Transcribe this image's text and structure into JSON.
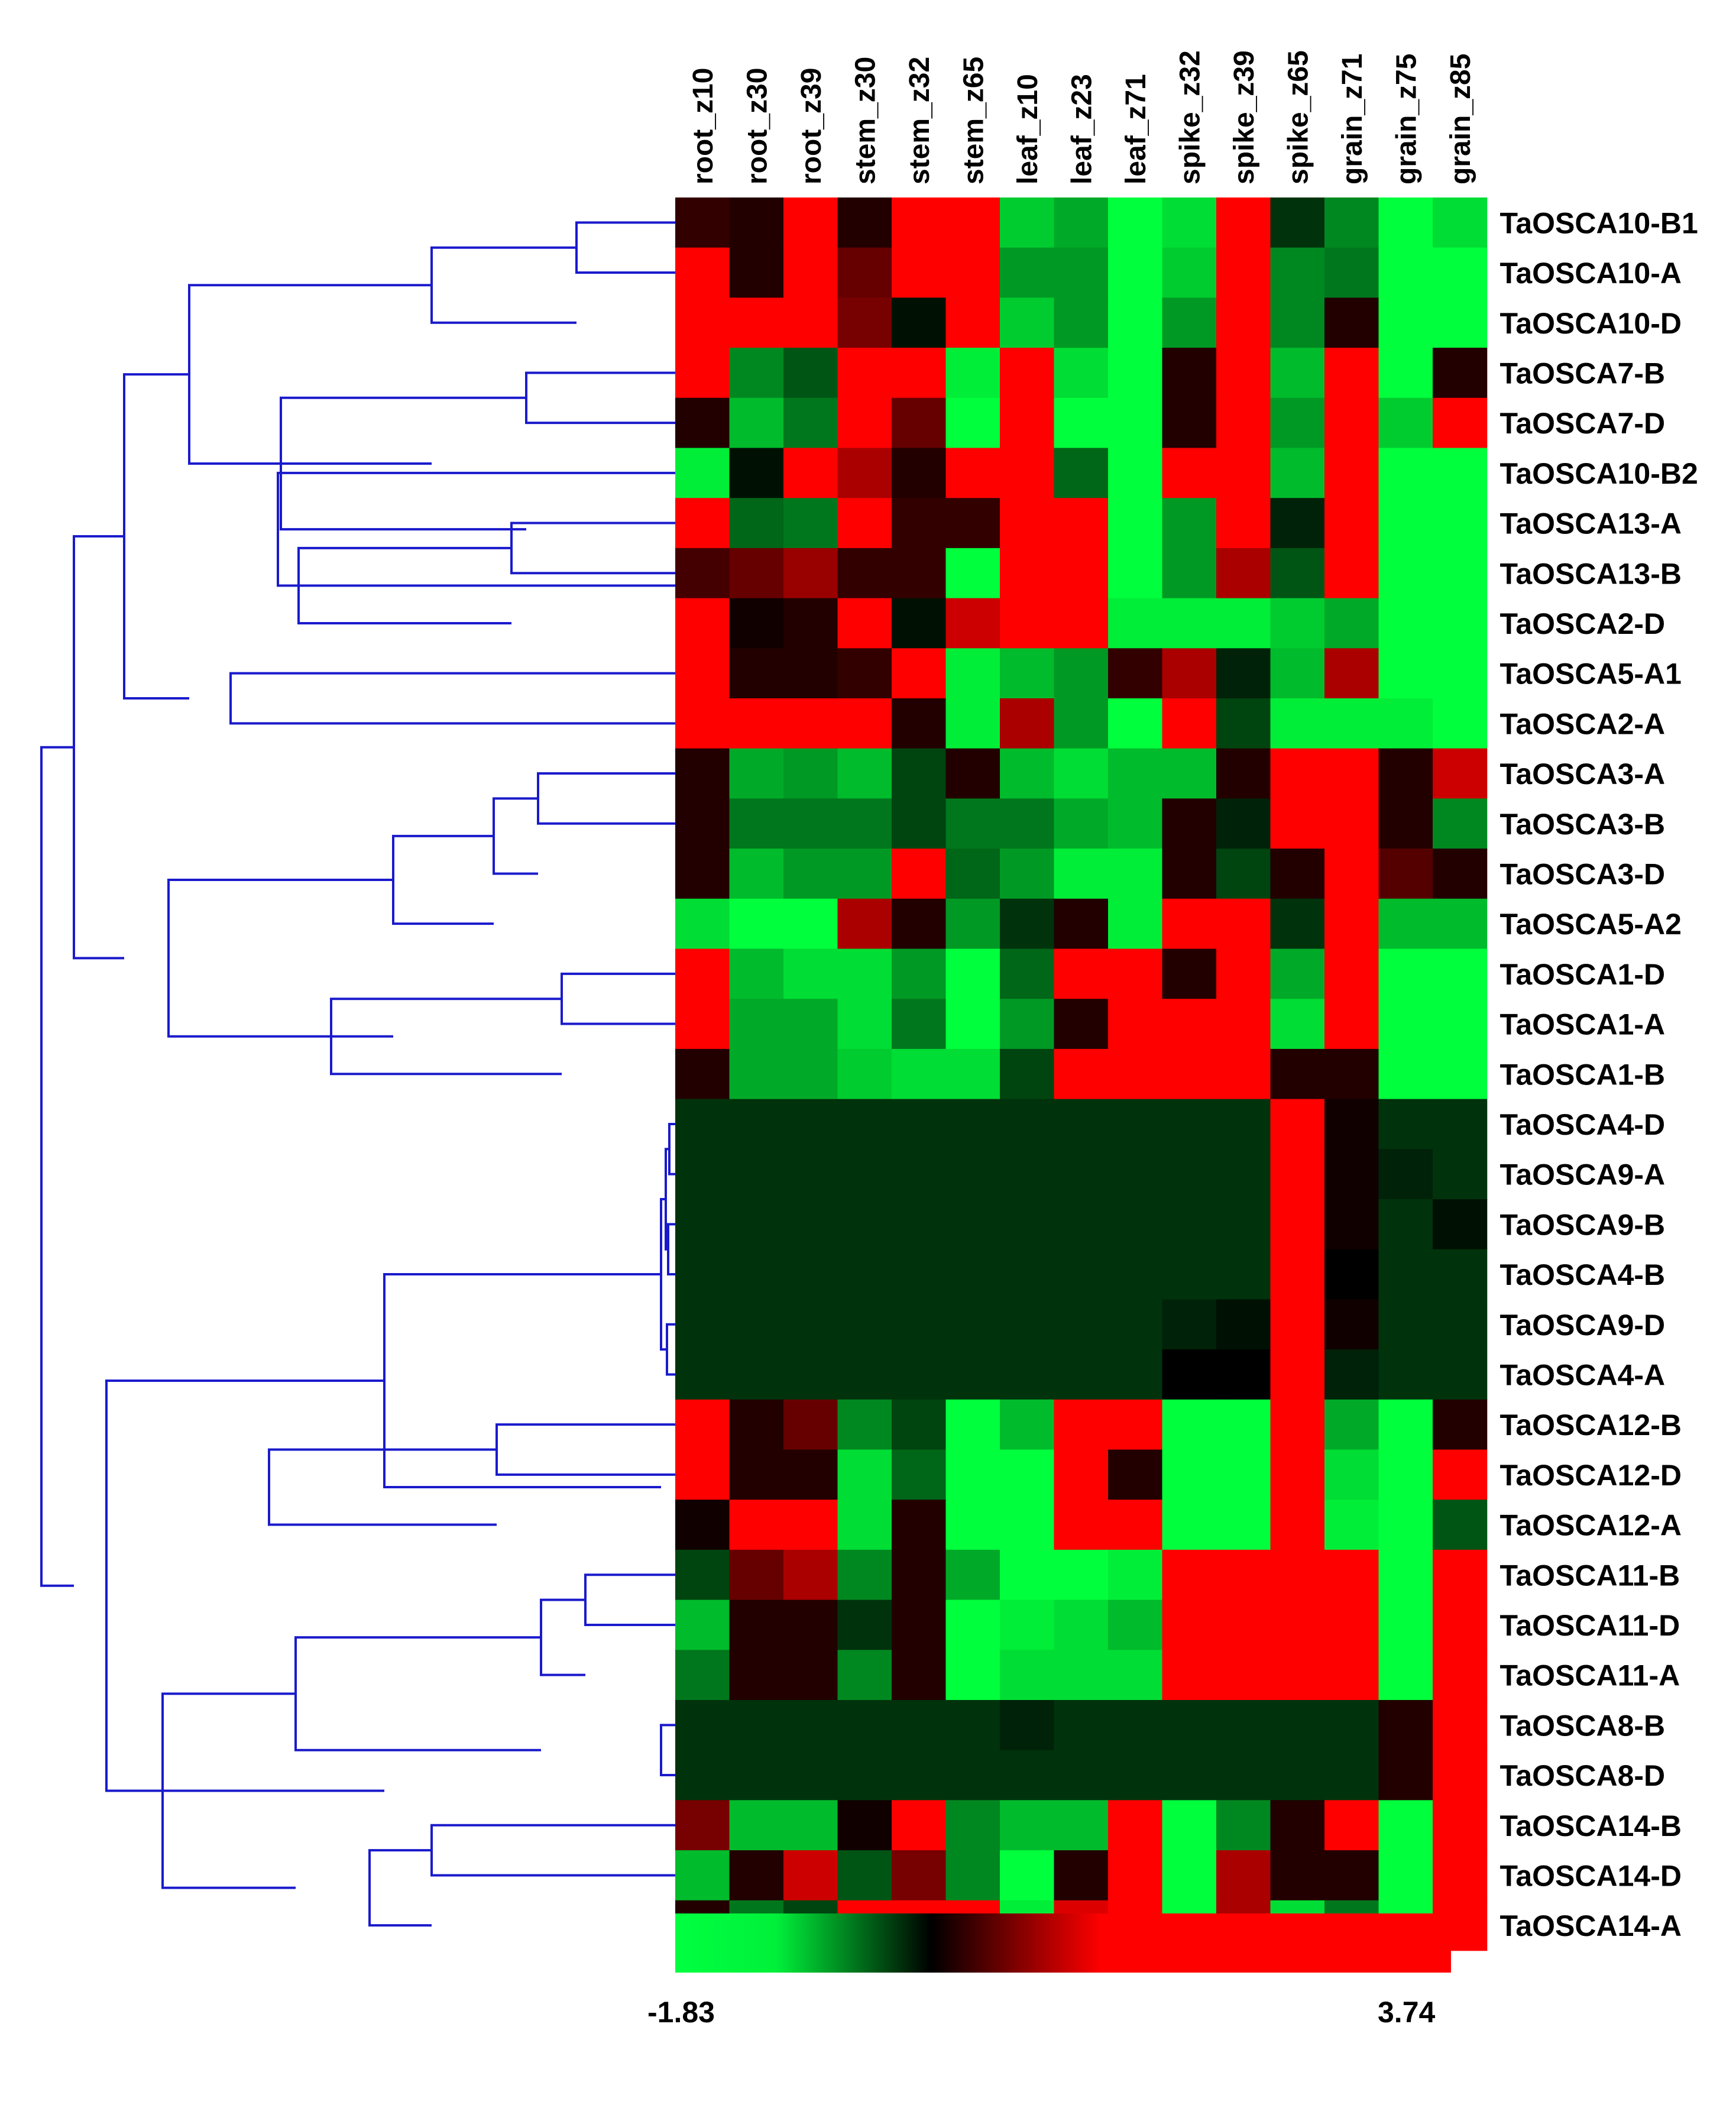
{
  "chart_data": {
    "type": "heatmap",
    "columns": [
      "root_z10",
      "root_z30",
      "root_z39",
      "stem_z30",
      "stem_z32",
      "stem_z65",
      "leaf_z10",
      "leaf_z23",
      "leaf_z71",
      "spike_z32",
      "spike_z39",
      "spike_z65",
      "grain_z71",
      "grain_z75",
      "grain_z85"
    ],
    "rows": [
      "TaOSCA10-B1",
      "TaOSCA10-A",
      "TaOSCA10-D",
      "TaOSCA7-B",
      "TaOSCA7-D",
      "TaOSCA10-B2",
      "TaOSCA13-A",
      "TaOSCA13-B",
      "TaOSCA2-D",
      "TaOSCA5-A1",
      "TaOSCA2-A",
      "TaOSCA3-A",
      "TaOSCA3-B",
      "TaOSCA3-D",
      "TaOSCA5-A2",
      "TaOSCA1-D",
      "TaOSCA1-A",
      "TaOSCA1-B",
      "TaOSCA4-D",
      "TaOSCA9-A",
      "TaOSCA9-B",
      "TaOSCA4-B",
      "TaOSCA9-D",
      "TaOSCA4-A",
      "TaOSCA12-B",
      "TaOSCA12-D",
      "TaOSCA12-A",
      "TaOSCA11-B",
      "TaOSCA11-D",
      "TaOSCA11-A",
      "TaOSCA8-B",
      "TaOSCA8-D",
      "TaOSCA14-B",
      "TaOSCA14-D",
      "TaOSCA14-A"
    ],
    "values": [
      [
        0.3,
        0.2,
        2.6,
        0.2,
        1.5,
        3.6,
        -1.2,
        -1.0,
        -1.6,
        -1.3,
        3.6,
        -0.3,
        -0.8,
        -1.7,
        -1.3
      ],
      [
        2.2,
        0.2,
        3.6,
        0.6,
        1.8,
        3.6,
        -0.9,
        -0.9,
        -1.7,
        -1.2,
        3.6,
        -0.8,
        -0.7,
        -1.7,
        -1.6
      ],
      [
        2.2,
        3.6,
        2.6,
        0.7,
        -0.1,
        3.6,
        -1.2,
        -0.9,
        -1.7,
        -0.9,
        3.6,
        -0.8,
        0.2,
        -1.7,
        -1.5
      ],
      [
        1.8,
        -0.8,
        -0.5,
        3.6,
        1.8,
        -1.4,
        3.6,
        -1.3,
        -1.7,
        0.2,
        3.6,
        -1.1,
        2.0,
        -1.7,
        0.2
      ],
      [
        0.2,
        -1.1,
        -0.7,
        3.6,
        0.6,
        -1.6,
        2.3,
        -1.5,
        -1.7,
        0.2,
        3.6,
        -0.9,
        2.0,
        -1.2,
        3.5
      ],
      [
        -1.4,
        -0.1,
        2.2,
        1.0,
        0.2,
        2.4,
        3.6,
        -0.6,
        -1.7,
        2.0,
        3.6,
        -1.1,
        1.6,
        -1.7,
        -1.7
      ],
      [
        1.5,
        -0.6,
        -0.7,
        2.6,
        0.3,
        0.3,
        3.6,
        3.6,
        -1.7,
        -0.9,
        2.5,
        -0.2,
        3.6,
        -1.7,
        -1.7
      ],
      [
        0.4,
        0.6,
        0.9,
        0.3,
        0.3,
        -1.5,
        3.6,
        3.6,
        -1.7,
        -0.9,
        1.0,
        -0.5,
        3.6,
        -1.7,
        -1.7
      ],
      [
        2.2,
        0.1,
        0.2,
        3.6,
        -0.1,
        1.2,
        3.6,
        3.6,
        -1.4,
        -1.4,
        -1.4,
        -1.2,
        -1.0,
        -1.7,
        -1.7
      ],
      [
        3.6,
        0.2,
        0.2,
        0.3,
        3.6,
        -1.4,
        -1.1,
        -0.9,
        0.3,
        1.0,
        -0.2,
        -1.1,
        1.0,
        -1.7,
        -1.7
      ],
      [
        3.6,
        2.0,
        2.0,
        3.6,
        0.2,
        -1.4,
        1.0,
        -0.9,
        -1.6,
        2.4,
        -0.4,
        -1.4,
        -1.4,
        -1.4,
        -1.5
      ],
      [
        0.2,
        -1.0,
        -0.9,
        -1.1,
        -0.4,
        0.2,
        -1.1,
        -1.3,
        -1.1,
        -1.1,
        0.2,
        3.0,
        3.6,
        0.2,
        1.2
      ],
      [
        0.2,
        -0.7,
        -0.7,
        -0.7,
        -0.4,
        -0.7,
        -0.7,
        -1.0,
        -1.1,
        0.2,
        -0.2,
        3.6,
        3.6,
        0.2,
        -0.8
      ],
      [
        0.2,
        -1.1,
        -0.9,
        -0.9,
        3.6,
        -0.6,
        -0.9,
        -1.4,
        -1.4,
        0.2,
        -0.4,
        0.2,
        3.6,
        0.5,
        0.2
      ],
      [
        -1.3,
        -1.6,
        -1.6,
        1.0,
        0.2,
        -0.9,
        -0.3,
        0.2,
        -1.4,
        3.6,
        3.6,
        -0.3,
        3.6,
        -1.1,
        -1.1
      ],
      [
        3.6,
        -1.1,
        -1.3,
        -1.3,
        -0.9,
        -1.7,
        -0.6,
        3.6,
        3.6,
        0.2,
        2.2,
        -1.0,
        3.6,
        -1.7,
        -1.7
      ],
      [
        3.1,
        -1.0,
        -1.0,
        -1.3,
        -0.7,
        -1.7,
        -0.9,
        0.2,
        3.6,
        3.0,
        3.0,
        -1.3,
        3.6,
        -1.7,
        -1.7
      ],
      [
        0.2,
        -1.0,
        -1.0,
        -1.2,
        -1.3,
        -1.3,
        -0.4,
        3.6,
        3.6,
        1.9,
        3.2,
        0.2,
        0.2,
        -1.7,
        -1.7
      ],
      [
        -0.3,
        -0.3,
        -0.3,
        -0.3,
        -0.3,
        -0.3,
        -0.3,
        -0.3,
        -0.3,
        -0.3,
        -0.3,
        3.6,
        0.1,
        -0.3,
        -0.3
      ],
      [
        -0.3,
        -0.3,
        -0.3,
        -0.3,
        -0.3,
        -0.3,
        -0.3,
        -0.3,
        -0.3,
        -0.3,
        -0.3,
        3.6,
        0.1,
        -0.2,
        -0.3
      ],
      [
        -0.3,
        -0.3,
        -0.3,
        -0.3,
        -0.3,
        -0.3,
        -0.3,
        -0.3,
        -0.3,
        -0.3,
        -0.3,
        3.6,
        0.1,
        -0.3,
        -0.1
      ],
      [
        -0.3,
        -0.3,
        -0.3,
        -0.3,
        -0.3,
        -0.3,
        -0.3,
        -0.3,
        -0.3,
        -0.3,
        -0.3,
        3.6,
        0.0,
        -0.3,
        -0.3
      ],
      [
        -0.3,
        -0.3,
        -0.3,
        -0.3,
        -0.3,
        -0.3,
        -0.3,
        -0.3,
        -0.3,
        -0.2,
        -0.1,
        3.6,
        0.1,
        -0.3,
        -0.3
      ],
      [
        -0.3,
        -0.3,
        -0.3,
        -0.3,
        -0.3,
        -0.3,
        -0.3,
        -0.3,
        -0.3,
        0.0,
        0.0,
        3.6,
        -0.2,
        -0.3,
        -0.3
      ],
      [
        1.9,
        0.2,
        0.6,
        -0.8,
        -0.4,
        -1.5,
        -1.1,
        2.8,
        1.8,
        -1.5,
        -1.5,
        3.6,
        -1.0,
        -1.6,
        0.2
      ],
      [
        3.6,
        0.2,
        0.2,
        -1.3,
        -0.6,
        -1.5,
        -1.5,
        3.6,
        0.2,
        -1.5,
        -1.5,
        3.6,
        -1.3,
        -1.6,
        2.8
      ],
      [
        0.1,
        3.6,
        3.6,
        -1.3,
        0.2,
        -1.5,
        -1.5,
        3.6,
        3.6,
        -1.5,
        -1.5,
        3.6,
        -1.4,
        -1.6,
        -0.5
      ],
      [
        -0.4,
        0.6,
        1.0,
        -0.8,
        0.2,
        -1.0,
        -1.7,
        -1.7,
        -1.4,
        3.0,
        3.2,
        3.6,
        3.3,
        -1.7,
        3.6
      ],
      [
        -1.1,
        0.2,
        0.2,
        -0.3,
        0.2,
        -1.5,
        -1.4,
        -1.3,
        -1.1,
        2.8,
        1.6,
        3.6,
        3.3,
        -1.7,
        3.6
      ],
      [
        -0.7,
        0.2,
        0.2,
        -0.8,
        0.2,
        -1.5,
        -1.3,
        -1.3,
        -1.3,
        1.8,
        3.6,
        3.6,
        3.4,
        -1.7,
        3.6
      ],
      [
        -0.3,
        -0.3,
        -0.3,
        -0.3,
        -0.3,
        -0.3,
        -0.2,
        -0.3,
        -0.3,
        -0.3,
        -0.3,
        -0.3,
        -0.3,
        0.2,
        3.6
      ],
      [
        -0.3,
        -0.3,
        -0.3,
        -0.3,
        -0.3,
        -0.3,
        -0.3,
        -0.3,
        -0.3,
        -0.3,
        -0.3,
        -0.3,
        -0.3,
        0.2,
        3.6
      ],
      [
        0.7,
        -1.1,
        -1.1,
        0.1,
        2.5,
        -0.8,
        -1.1,
        -1.1,
        3.6,
        -1.6,
        -0.8,
        0.2,
        3.6,
        -1.5,
        3.6
      ],
      [
        -1.1,
        0.2,
        1.2,
        -0.5,
        0.7,
        -0.8,
        -1.7,
        0.2,
        3.6,
        -1.6,
        1.0,
        0.2,
        0.2,
        -1.5,
        3.6
      ],
      [
        0.2,
        -0.7,
        -0.4,
        2.0,
        3.6,
        3.4,
        -1.4,
        1.3,
        3.6,
        -1.6,
        1.0,
        -1.3,
        -0.7,
        -1.5,
        3.6
      ]
    ],
    "color_scale": {
      "min": -1.83,
      "max": 3.74,
      "min_label": "-1.83",
      "max_label": "3.74",
      "low_color": "#00ff40",
      "mid_color": "#000000",
      "high_color": "#ff0000"
    },
    "dendrogram_color": "#1a1acc",
    "row_dendrogram": true
  }
}
